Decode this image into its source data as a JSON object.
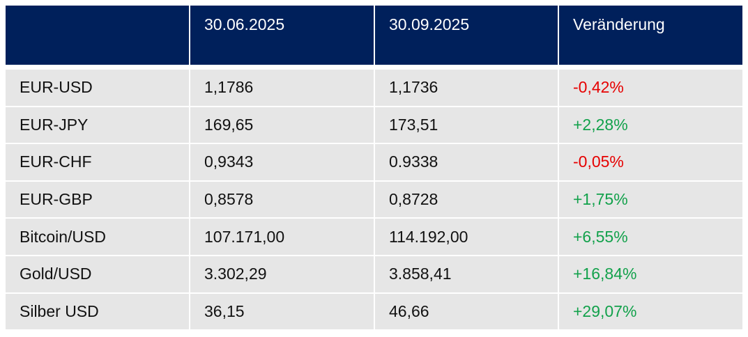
{
  "table": {
    "header": [
      "30.06.2025",
      "30.09.2025",
      "Veränderung"
    ],
    "rows": [
      [
        "EUR-USD",
        "1,1786",
        "1,1736",
        "-0,42%"
      ],
      [
        "EUR-JPY",
        "169,65",
        "173,51",
        "+2,28%"
      ],
      [
        "EUR-CHF",
        "0,9343",
        "0.9338",
        "-0,05%"
      ],
      [
        "EUR-GBP",
        "0,8578",
        "0,8728",
        "+1,75%"
      ],
      [
        "Bitcoin/USD",
        "107.171,00",
        "114.192,00",
        "+6,55%"
      ],
      [
        "Gold/USD",
        "3.302,29",
        "3.858,41",
        "+16,84%"
      ],
      [
        "Silber USD",
        "36,15",
        "46,66",
        "+29,07%"
      ]
    ],
    "colors": {
      "header": "#00205b",
      "row": "#e6e6e6",
      "negative": "#e60000",
      "positive": "#12a14b"
    }
  }
}
